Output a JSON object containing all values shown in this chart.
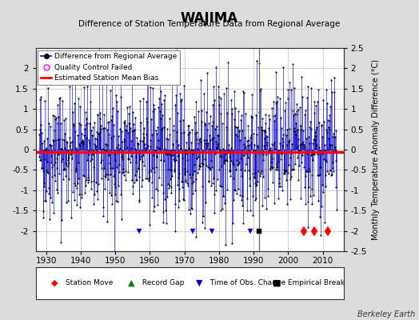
{
  "title": "WAJIMA",
  "subtitle": "Difference of Station Temperature Data from Regional Average",
  "ylabel": "Monthly Temperature Anomaly Difference (°C)",
  "xlim": [
    1927,
    2016
  ],
  "ylim": [
    -2.6,
    2.6
  ],
  "plot_ylim": [
    -2.5,
    2.5
  ],
  "xticks": [
    1930,
    1940,
    1950,
    1960,
    1970,
    1980,
    1990,
    2000,
    2010
  ],
  "yticks_left": [
    -2,
    -1.5,
    -1,
    -0.5,
    0,
    0.5,
    1,
    1.5,
    2
  ],
  "ytick_labels_left": [
    "-2",
    "-1.5",
    "-1",
    "-0.5",
    "0",
    "0.5",
    "1",
    "1.5",
    "2"
  ],
  "yticks_right": [
    -2.5,
    -2,
    -1.5,
    -1,
    -0.5,
    0,
    0.5,
    1,
    1.5,
    2,
    2.5
  ],
  "ytick_labels_right": [
    "-2.5",
    "-2",
    "-1.5",
    "-1",
    "-0.5",
    "0",
    "0.5",
    "1",
    "1.5",
    "2",
    "2.5"
  ],
  "bias_level": -0.05,
  "line_color": "#0000CC",
  "dot_color": "#000000",
  "bias_color": "#FF0000",
  "background_color": "#DCDCDC",
  "plot_bg_color": "#FFFFFF",
  "station_move_times": [
    2004.5,
    2007.5,
    2011.5
  ],
  "station_move_color": "#FF0000",
  "empirical_break_times": [
    1991.5
  ],
  "empirical_break_color": "#000000",
  "time_obs_change_times": [
    1972.5,
    1957.0,
    1978.0,
    1989.0
  ],
  "time_obs_change_color": "#0000CC",
  "record_gap_times": [],
  "record_gap_color": "#008000",
  "footer_text": "Berkeley Earth",
  "seed": 42,
  "n_years": 86,
  "start_year": 1928,
  "amplitude": 0.85
}
